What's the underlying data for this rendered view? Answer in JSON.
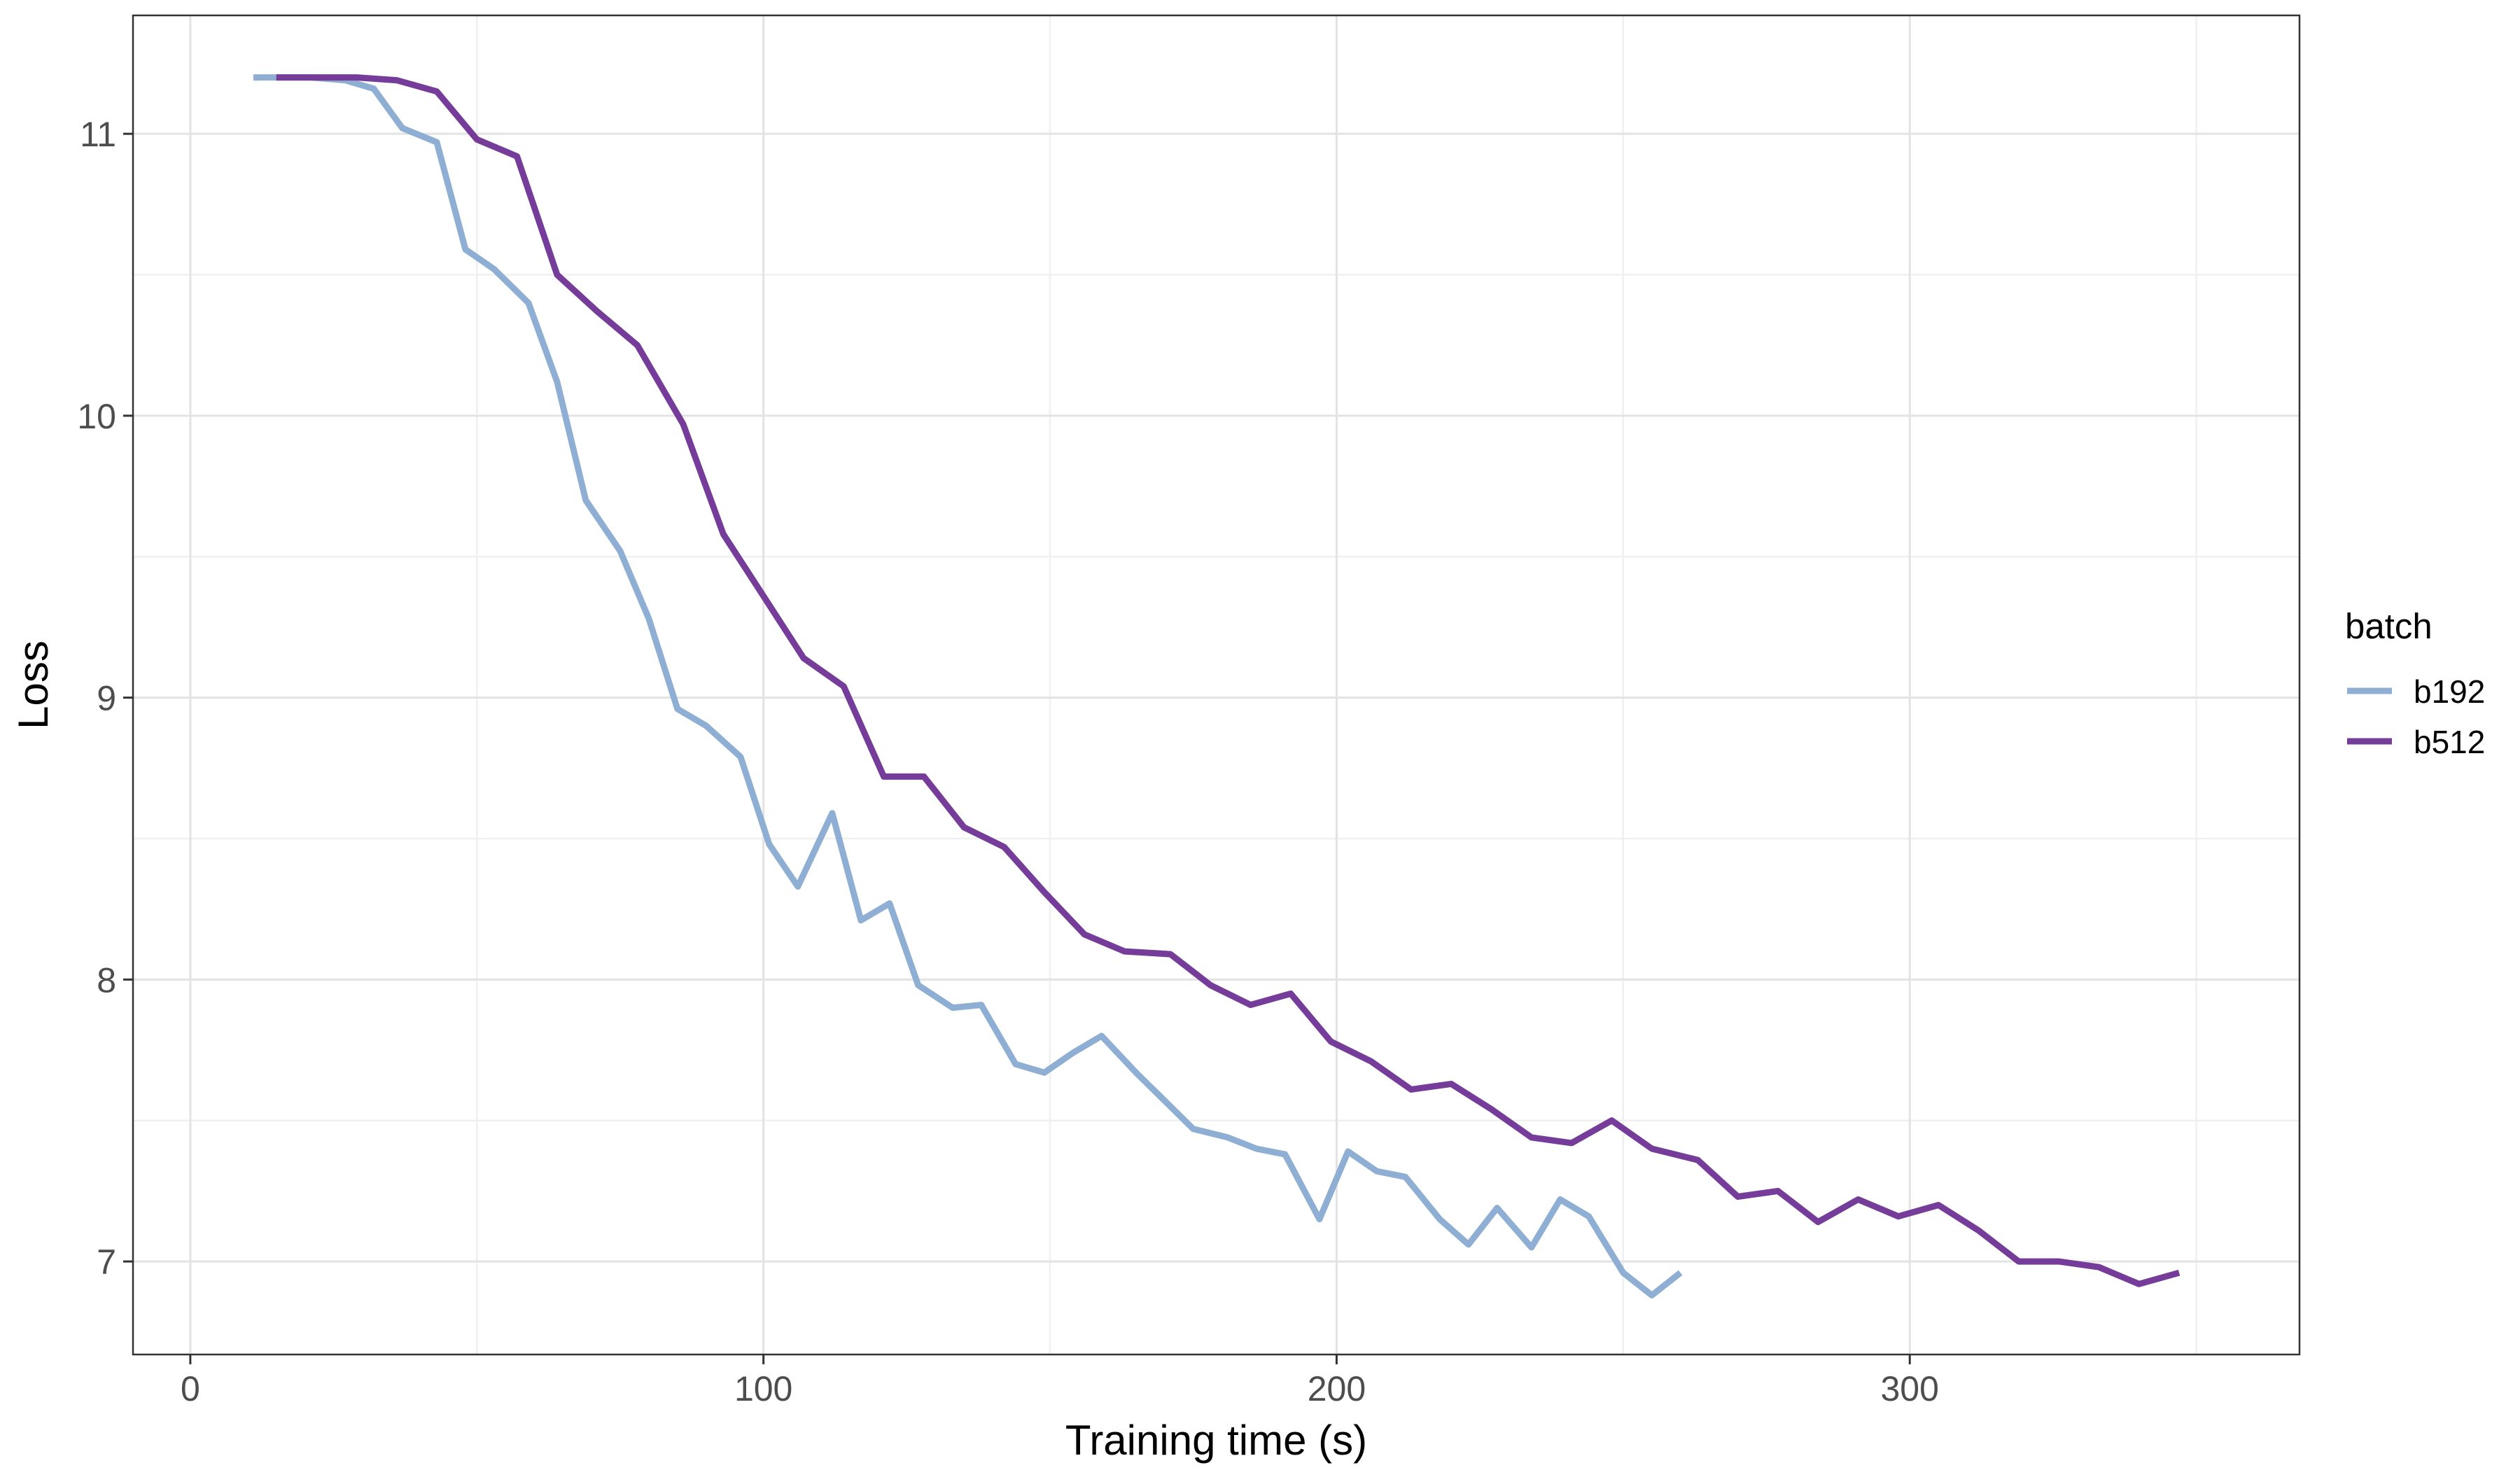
{
  "chart_data": {
    "type": "line",
    "xlabel": "Training time (s)",
    "ylabel": "Loss",
    "xlim": [
      -10,
      368
    ],
    "ylim": [
      6.67,
      11.42
    ],
    "x_ticks": [
      0,
      100,
      200,
      300
    ],
    "y_ticks": [
      7,
      8,
      9,
      10,
      11
    ],
    "grid": true,
    "legend": {
      "title": "batch",
      "placement": "right"
    },
    "series": [
      {
        "name": "b192",
        "color": "#8eafd3",
        "x": [
          11,
          16,
          21,
          27,
          32,
          37,
          43,
          48,
          53,
          59,
          64,
          69,
          75,
          80,
          85,
          90,
          96,
          101,
          106,
          112,
          117,
          122,
          127,
          133,
          138,
          144,
          149,
          154,
          159,
          165,
          170,
          175,
          181,
          186,
          191,
          197,
          202,
          207,
          212,
          218,
          223,
          228,
          234,
          239,
          244,
          250,
          255,
          260
        ],
        "y": [
          11.2,
          11.2,
          11.2,
          11.19,
          11.16,
          11.02,
          10.97,
          10.59,
          10.52,
          10.4,
          10.12,
          9.7,
          9.52,
          9.28,
          8.96,
          8.9,
          8.79,
          8.48,
          8.33,
          8.59,
          8.21,
          8.27,
          7.98,
          7.9,
          7.91,
          7.7,
          7.67,
          7.74,
          7.8,
          7.67,
          7.57,
          7.47,
          7.44,
          7.4,
          7.38,
          7.15,
          7.39,
          7.32,
          7.3,
          7.15,
          7.06,
          7.19,
          7.05,
          7.22,
          7.16,
          6.96,
          6.88,
          6.96
        ]
      },
      {
        "name": "b512",
        "color": "#763c99",
        "x": [
          15,
          22,
          29,
          36,
          43,
          50,
          57,
          64,
          71,
          78,
          86,
          93,
          100,
          107,
          114,
          121,
          128,
          135,
          142,
          149,
          156,
          163,
          171,
          178,
          185,
          192,
          199,
          206,
          213,
          220,
          227,
          234,
          241,
          248,
          255,
          263,
          270,
          277,
          284,
          291,
          298,
          305,
          312,
          319,
          326,
          333,
          340,
          347
        ],
        "y": [
          11.2,
          11.2,
          11.2,
          11.19,
          11.15,
          10.98,
          10.92,
          10.5,
          10.37,
          10.25,
          9.97,
          9.58,
          9.36,
          9.14,
          9.04,
          8.72,
          8.72,
          8.54,
          8.47,
          8.31,
          8.16,
          8.1,
          8.09,
          7.98,
          7.91,
          7.95,
          7.78,
          7.71,
          7.61,
          7.63,
          7.54,
          7.44,
          7.42,
          7.5,
          7.4,
          7.36,
          7.23,
          7.25,
          7.14,
          7.22,
          7.16,
          7.2,
          7.11,
          7.0,
          7.0,
          6.98,
          6.92,
          6.96
        ]
      }
    ]
  },
  "colors": {
    "panel_border": "#333333",
    "grid_major": "#e3e3e3",
    "grid_minor": "#f0f0f0",
    "tick": "#333333"
  }
}
